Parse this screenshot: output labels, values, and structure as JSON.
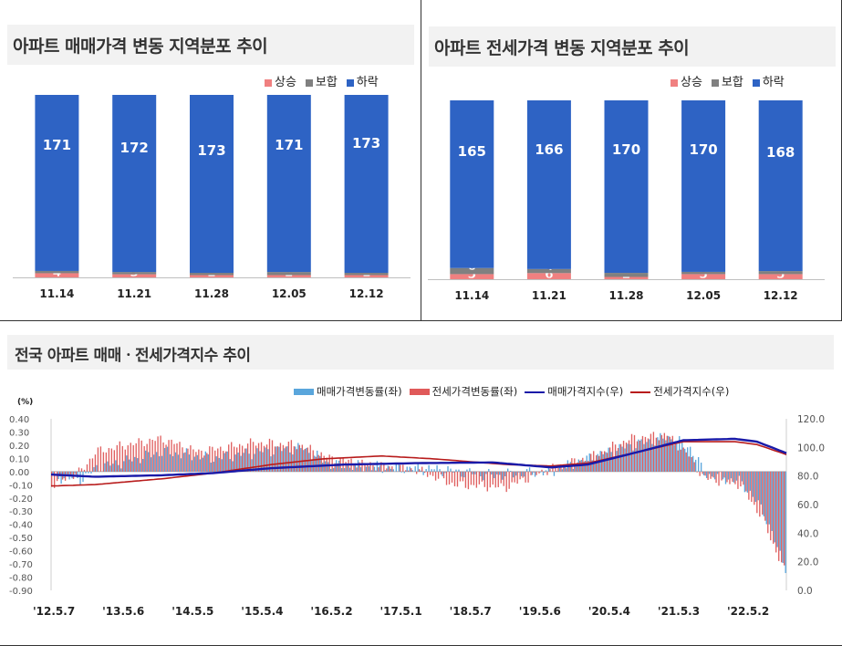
{
  "panels": {
    "sale": {
      "title": "아파트 매매가격 변동 지역분포 추이",
      "legend": [
        "상승",
        "보합",
        "하락"
      ],
      "chart_data": {
        "type": "bar",
        "stacked": true,
        "categories": [
          "11.14",
          "11.21",
          "11.28",
          "12.05",
          "12.12"
        ],
        "series": [
          {
            "name": "상승",
            "values": [
              4,
              3,
              2,
              2,
              1
            ],
            "color": "#f08080"
          },
          {
            "name": "보합",
            "values": [
              1,
              1,
              1,
              3,
              2
            ],
            "color": "#808080"
          },
          {
            "name": "하락",
            "values": [
              171,
              172,
              173,
              171,
              173
            ],
            "color": "#2e63c4"
          }
        ]
      }
    },
    "jeonse": {
      "title": "아파트 전세가격 변동 지역분포 추이",
      "legend": [
        "상승",
        "보합",
        "하락"
      ],
      "chart_data": {
        "type": "bar",
        "stacked": true,
        "categories": [
          "11.14",
          "11.21",
          "11.28",
          "12.05",
          "12.12"
        ],
        "series": [
          {
            "name": "상승",
            "values": [
              5,
              6,
              2,
              5,
              5
            ],
            "color": "#f08080"
          },
          {
            "name": "보합",
            "values": [
              6,
              4,
              4,
              1,
              3
            ],
            "color": "#808080"
          },
          {
            "name": "하락",
            "values": [
              165,
              166,
              170,
              170,
              168
            ],
            "color": "#2e63c4"
          }
        ]
      }
    },
    "index": {
      "title": "전국 아파트 매매ㆍ전세가격지수 추이",
      "legend": [
        "매매가격변동률(좌)",
        "전세가격변동률(좌)",
        "매매가격지수(우)",
        "전세가격지수(우)"
      ],
      "y_left_unit": "(%)",
      "chart_data": {
        "type": "bar+line",
        "x_labels": [
          "'12.5.7",
          "'13.5.6",
          "'14.5.5",
          "'15.5.4",
          "'16.5.2",
          "'17.5.1",
          "'18.5.7",
          "'19.5.6",
          "'20.5.4",
          "'21.5.3",
          "'22.5.2"
        ],
        "y_left": {
          "min": -0.9,
          "max": 0.4,
          "ticks": [
            "0.40",
            "0.30",
            "0.20",
            "0.10",
            "0.00",
            "-0.10",
            "-0.20",
            "-0.30",
            "-0.40",
            "-0.50",
            "-0.60",
            "-0.70",
            "-0.80",
            "-0.90"
          ]
        },
        "y_right": {
          "min": 0,
          "max": 120,
          "ticks": [
            "120.0",
            "100.0",
            "80.0",
            "60.0",
            "40.0",
            "20.0",
            "0.0"
          ]
        },
        "sale_index_keypoints": [
          [
            0,
            81
          ],
          [
            0.06,
            79.5
          ],
          [
            0.15,
            80.5
          ],
          [
            0.22,
            82
          ],
          [
            0.3,
            85.5
          ],
          [
            0.4,
            88
          ],
          [
            0.5,
            89
          ],
          [
            0.6,
            89.5
          ],
          [
            0.68,
            86
          ],
          [
            0.73,
            88
          ],
          [
            0.8,
            97
          ],
          [
            0.86,
            105
          ],
          [
            0.93,
            106
          ],
          [
            0.96,
            104
          ],
          [
            1,
            96
          ]
        ],
        "jeonse_index_keypoints": [
          [
            0,
            73
          ],
          [
            0.06,
            74
          ],
          [
            0.15,
            78
          ],
          [
            0.22,
            82
          ],
          [
            0.3,
            88
          ],
          [
            0.37,
            92
          ],
          [
            0.45,
            94
          ],
          [
            0.52,
            92
          ],
          [
            0.62,
            88
          ],
          [
            0.68,
            87
          ],
          [
            0.73,
            89
          ],
          [
            0.8,
            97
          ],
          [
            0.86,
            104
          ],
          [
            0.93,
            104
          ],
          [
            0.96,
            102
          ],
          [
            1,
            95
          ]
        ],
        "sale_rate_keypoints": [
          [
            0,
            -0.04
          ],
          [
            0.04,
            -0.06
          ],
          [
            0.06,
            0.03
          ],
          [
            0.1,
            0.08
          ],
          [
            0.15,
            0.15
          ],
          [
            0.22,
            0.1
          ],
          [
            0.28,
            0.15
          ],
          [
            0.34,
            0.18
          ],
          [
            0.38,
            0.05
          ],
          [
            0.45,
            0.03
          ],
          [
            0.52,
            0.02
          ],
          [
            0.6,
            -0.03
          ],
          [
            0.68,
            0.0
          ],
          [
            0.74,
            0.12
          ],
          [
            0.79,
            0.2
          ],
          [
            0.84,
            0.26
          ],
          [
            0.87,
            0.18
          ],
          [
            0.89,
            -0.02
          ],
          [
            0.94,
            -0.08
          ],
          [
            0.97,
            -0.3
          ],
          [
            0.99,
            -0.6
          ],
          [
            1,
            -0.72
          ]
        ],
        "jeonse_rate_keypoints": [
          [
            0,
            -0.1
          ],
          [
            0.04,
            0.0
          ],
          [
            0.06,
            0.15
          ],
          [
            0.1,
            0.2
          ],
          [
            0.15,
            0.25
          ],
          [
            0.2,
            0.15
          ],
          [
            0.28,
            0.22
          ],
          [
            0.34,
            0.2
          ],
          [
            0.38,
            0.1
          ],
          [
            0.45,
            0.04
          ],
          [
            0.5,
            0.01
          ],
          [
            0.55,
            -0.1
          ],
          [
            0.62,
            -0.12
          ],
          [
            0.68,
            0.02
          ],
          [
            0.74,
            0.12
          ],
          [
            0.79,
            0.25
          ],
          [
            0.84,
            0.28
          ],
          [
            0.87,
            0.12
          ],
          [
            0.89,
            -0.05
          ],
          [
            0.94,
            -0.1
          ],
          [
            0.97,
            -0.35
          ],
          [
            0.99,
            -0.62
          ],
          [
            1,
            -0.75
          ]
        ]
      }
    }
  }
}
